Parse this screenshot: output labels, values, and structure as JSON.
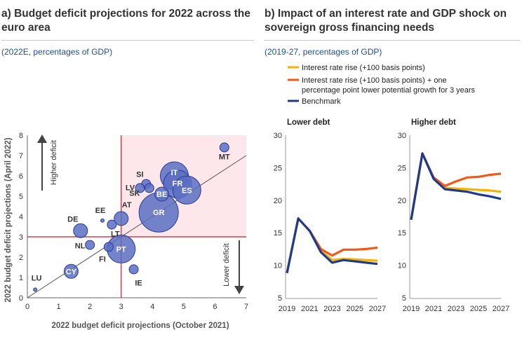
{
  "panel_a": {
    "title": "a) Budget deficit projections for 2022 across the euro area",
    "subtitle": "(2022E, percentages of GDP)"
  },
  "panel_b": {
    "title": "b) Impact of an interest rate and GDP shock on sovereign gross financing needs",
    "subtitle": "(2019-27, percentages of GDP)"
  },
  "colors": {
    "bubble": "#5b6fc2",
    "bubble_edge": "#2a3d9b",
    "shade": "#fde7ea",
    "threshold": "#c0202a",
    "diagonal": "#555555",
    "interest": "#f5b400",
    "interest_gdp": "#f05a14",
    "benchmark": "#1d3a8f"
  },
  "chart_data": [
    {
      "type": "scatter",
      "variant": "bubble",
      "xlabel": "2022 budget deficit projections (October 2021)",
      "ylabel": "2022 budget deficit projections (April 2022)",
      "xlim": [
        0,
        7
      ],
      "ylim": [
        0,
        8
      ],
      "xticks": [
        "0",
        "1",
        "2",
        "3",
        "4",
        "5",
        "6",
        "7"
      ],
      "yticks": [
        "0",
        "1",
        "2",
        "3",
        "4",
        "5",
        "6",
        "7",
        "8"
      ],
      "threshold": 3,
      "annotations": {
        "up": "Higher deficit",
        "down": "Lower deficit"
      },
      "points": [
        {
          "label": "MT",
          "x": 6.3,
          "y": 7.4,
          "size": "small"
        },
        {
          "label": "IT",
          "x": 4.7,
          "y": 6.0,
          "size": "large"
        },
        {
          "label": "FR",
          "x": 4.8,
          "y": 5.6,
          "size": "large"
        },
        {
          "label": "ES",
          "x": 5.1,
          "y": 5.3,
          "size": "large"
        },
        {
          "label": "BE",
          "x": 4.3,
          "y": 5.1,
          "size": "medium"
        },
        {
          "label": "GR",
          "x": 4.2,
          "y": 4.2,
          "size": "xlarge"
        },
        {
          "label": "SI",
          "x": 3.8,
          "y": 5.6,
          "size": "small"
        },
        {
          "label": "LV",
          "x": 3.6,
          "y": 5.4,
          "size": "small"
        },
        {
          "label": "SK",
          "x": 3.9,
          "y": 5.4,
          "size": "small"
        },
        {
          "label": "AT",
          "x": 3.0,
          "y": 3.9,
          "size": "medium"
        },
        {
          "label": "LT",
          "x": 2.7,
          "y": 3.6,
          "size": "small"
        },
        {
          "label": "EE",
          "x": 2.4,
          "y": 3.8,
          "size": "tiny"
        },
        {
          "label": "DE",
          "x": 1.7,
          "y": 3.3,
          "size": "medium"
        },
        {
          "label": "NL",
          "x": 2.0,
          "y": 2.6,
          "size": "small"
        },
        {
          "label": "FI",
          "x": 2.6,
          "y": 2.5,
          "size": "small"
        },
        {
          "label": "PT",
          "x": 3.0,
          "y": 2.4,
          "size": "large"
        },
        {
          "label": "CY",
          "x": 1.4,
          "y": 1.3,
          "size": "medium"
        },
        {
          "label": "IE",
          "x": 3.4,
          "y": 1.4,
          "size": "small"
        },
        {
          "label": "LU",
          "x": 0.25,
          "y": 0.4,
          "size": "tiny"
        }
      ]
    },
    {
      "type": "line",
      "legend": [
        "Interest rate rise (+100 basis points)",
        "Interest rate rise (+100 basis points) + one percentage point lower potential growth for 3 years",
        "Benchmark"
      ],
      "ylim": [
        5,
        30
      ],
      "yticks": [
        "5",
        "10",
        "15",
        "20",
        "25",
        "30"
      ],
      "xtick_labels": [
        "2019",
        "2021",
        "2023",
        "2025",
        "2027"
      ],
      "x": [
        2019,
        2020,
        2021,
        2022,
        2023,
        2024,
        2025,
        2026,
        2027
      ],
      "subcharts": [
        {
          "title": "Lower debt",
          "series": [
            {
              "name": "Interest rate rise (+100 basis points)",
              "color_key": "interest",
              "values": [
                8.8,
                17.2,
                15.3,
                12.2,
                10.8,
                11.0,
                10.9,
                10.8,
                10.7
              ]
            },
            {
              "name": "Interest rate rise (+100 basis points) + one percentage point lower potential growth for 3 years",
              "color_key": "interest_gdp",
              "values": [
                8.8,
                17.2,
                15.3,
                12.5,
                11.5,
                12.4,
                12.4,
                12.5,
                12.7
              ]
            },
            {
              "name": "Benchmark",
              "color_key": "benchmark",
              "values": [
                8.8,
                17.2,
                15.3,
                12.0,
                10.4,
                10.8,
                10.6,
                10.4,
                10.2
              ]
            }
          ]
        },
        {
          "title": "Higher debt",
          "series": [
            {
              "name": "Interest rate rise (+100 basis points)",
              "color_key": "interest",
              "values": [
                17.0,
                27.2,
                23.5,
                21.9,
                21.8,
                21.7,
                21.6,
                21.5,
                21.3
              ]
            },
            {
              "name": "Interest rate rise (+100 basis points) + one percentage point lower potential growth for 3 years",
              "color_key": "interest_gdp",
              "values": [
                17.0,
                27.2,
                23.5,
                22.2,
                22.9,
                23.5,
                23.6,
                23.9,
                24.1
              ]
            },
            {
              "name": "Benchmark",
              "color_key": "benchmark",
              "values": [
                17.0,
                27.2,
                23.3,
                21.7,
                21.5,
                21.3,
                20.9,
                20.6,
                20.2
              ]
            }
          ]
        }
      ]
    }
  ]
}
